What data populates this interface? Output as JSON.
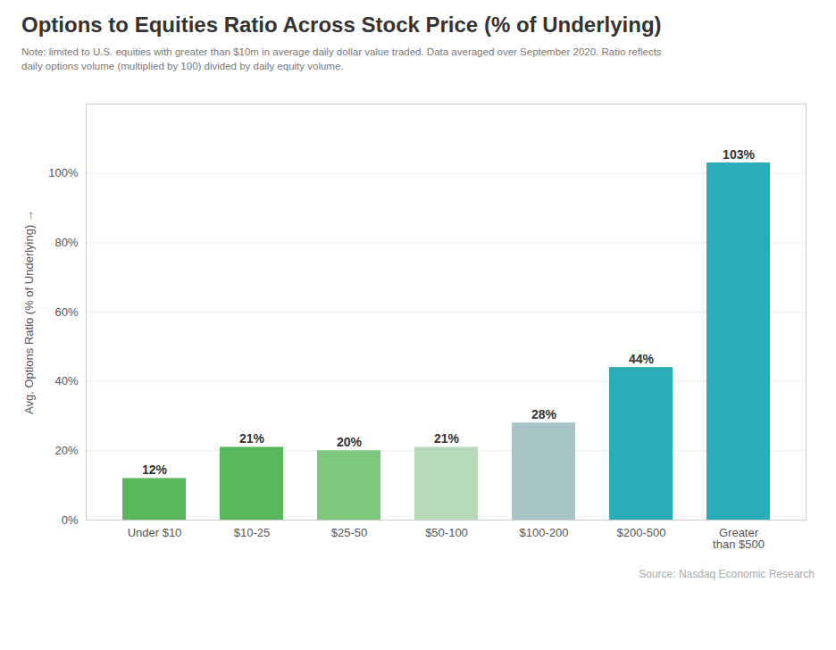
{
  "chart_data": {
    "type": "bar",
    "title": "Options to Equities Ratio Across Stock Price (% of Underlying)",
    "subtitle": "Note: limited to U.S. equities with greater than $10m in average daily dollar value traded. Data averaged over September 2020. Ratio reflects\ndaily options volume (multiplied by 100) divided by daily equity volume.",
    "source": "Source: Nasdaq Economic Research",
    "ylabel": "Avg. Options Ratio (% of Underlying)",
    "categories": [
      "Under $10",
      "$10-25",
      "$25-50",
      "$50-100",
      "$100-200",
      "$200-500",
      "Greater\nthan $500"
    ],
    "values": [
      12,
      21,
      20,
      21,
      28,
      44,
      103
    ],
    "value_labels": [
      "12%",
      "21%",
      "20%",
      "21%",
      "28%",
      "44%",
      "103%"
    ],
    "data_labels": true,
    "colors": [
      "#5ab85c",
      "#5ab85c",
      "#7dc87d",
      "#b8d9b8",
      "#a8c4c8",
      "#2aadb8",
      "#2aadb8"
    ],
    "ylim": [
      0,
      120
    ],
    "yticks": [
      {
        "value": 0,
        "label": "0%"
      },
      {
        "value": 20,
        "label": "20%"
      },
      {
        "value": 40,
        "label": "40%"
      },
      {
        "value": 60,
        "label": "60%"
      },
      {
        "value": 80,
        "label": "80%"
      },
      {
        "value": 100,
        "label": "100%"
      }
    ],
    "grid": true
  }
}
